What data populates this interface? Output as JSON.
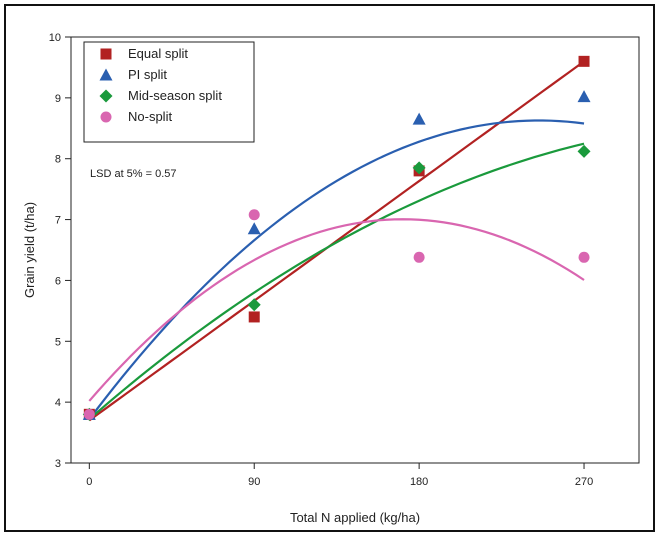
{
  "chart_data": {
    "type": "scatter",
    "title": "",
    "xlabel": "Total N applied (kg/ha)",
    "ylabel": "Grain yield (t/ha)",
    "xlim": [
      -10,
      300
    ],
    "ylim": [
      3,
      10
    ],
    "xticks": [
      0,
      90,
      180,
      270
    ],
    "yticks": [
      3,
      4,
      5,
      6,
      7,
      8,
      9,
      10
    ],
    "grid": false,
    "legend_position": "top-left",
    "annotation": "LSD at 5% = 0.57",
    "series": [
      {
        "name": "Equal split",
        "marker": "square",
        "color": "#b22222",
        "x": [
          0,
          90,
          180,
          270
        ],
        "y": [
          3.8,
          5.4,
          7.8,
          9.6
        ],
        "fit": "linear",
        "fit_coeffs": [
          3.7,
          0.02185,
          0
        ]
      },
      {
        "name": "PI split",
        "marker": "triangle",
        "color": "#2a5fb0",
        "x": [
          0,
          90,
          180,
          270
        ],
        "y": [
          3.8,
          6.85,
          8.65,
          9.02
        ],
        "fit": "quadratic",
        "fit_coeffs": [
          3.72,
          0.04,
          -8.15e-05
        ]
      },
      {
        "name": "Mid-season split",
        "marker": "diamond",
        "color": "#1a9a3c",
        "x": [
          0,
          90,
          180,
          270
        ],
        "y": [
          3.8,
          5.6,
          7.85,
          8.12
        ],
        "fit": "quadratic",
        "fit_coeffs": [
          3.72,
          0.0263,
          -3.53e-05
        ]
      },
      {
        "name": "No-split",
        "marker": "circle",
        "color": "#d966b0",
        "x": [
          0,
          90,
          180,
          270
        ],
        "y": [
          3.8,
          7.08,
          6.38,
          6.38
        ],
        "fit": "quadratic",
        "fit_coeffs": [
          4.02,
          0.0349,
          -0.000102
        ]
      }
    ]
  }
}
